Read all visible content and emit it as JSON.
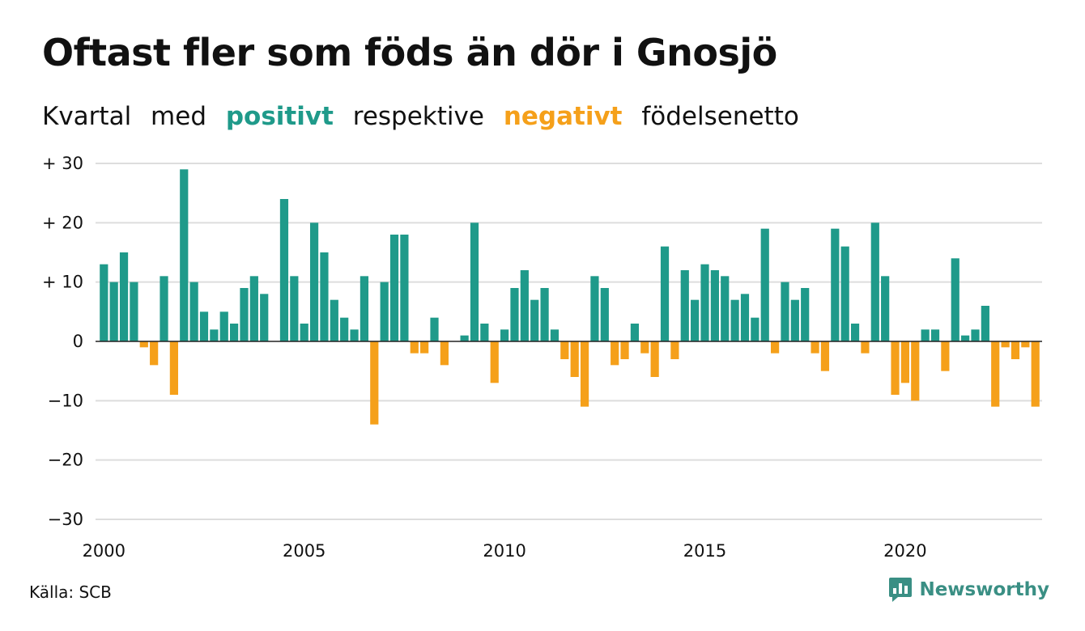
{
  "header": {
    "title": "Oftast fler som föds än dör i Gnosjö",
    "subtitle_parts": [
      "Kvartal",
      "med",
      "positivt",
      "respektive",
      "negativt",
      "födelsenetto"
    ]
  },
  "footer": {
    "source": "Källa: SCB",
    "brand": "Newsworthy",
    "brand_icon": "newsworthy-logo-icon"
  },
  "colors": {
    "positive": "#1f9a8a",
    "negative": "#f5a01a",
    "grid": "#dddddd",
    "axis": "#222222",
    "brand": "#3a8f84"
  },
  "chart_data": {
    "type": "bar",
    "title": "Oftast fler som föds än dör i Gnosjö",
    "subtitle": "Kvartal med positivt respektive negativt födelsenetto",
    "xlabel": "",
    "ylabel": "",
    "ylim": [
      -30,
      30
    ],
    "y_ticks": [
      30,
      20,
      10,
      0,
      -10,
      -20,
      -30
    ],
    "y_tick_labels": [
      "+ 30",
      "+ 20",
      "+ 10",
      "0",
      "−10",
      "−20",
      "−30"
    ],
    "x_tick_labels": [
      "2000",
      "2005",
      "2010",
      "2015",
      "2020"
    ],
    "start_year": 2000,
    "grid": true,
    "legend": "none",
    "values": [
      13,
      10,
      15,
      10,
      -1,
      -4,
      11,
      -9,
      29,
      10,
      5,
      2,
      5,
      3,
      9,
      11,
      8,
      0,
      24,
      11,
      3,
      20,
      15,
      7,
      4,
      2,
      11,
      -14,
      10,
      18,
      18,
      -2,
      -2,
      4,
      -4,
      0,
      1,
      20,
      3,
      -7,
      2,
      9,
      12,
      7,
      9,
      2,
      -3,
      -6,
      -11,
      11,
      9,
      -4,
      -3,
      3,
      -2,
      -6,
      16,
      -3,
      12,
      7,
      13,
      12,
      11,
      7,
      8,
      4,
      19,
      -2,
      10,
      7,
      9,
      -2,
      -5,
      19,
      16,
      3,
      -2,
      20,
      11,
      -9,
      -7,
      -10,
      2,
      2,
      -5,
      14,
      1,
      2,
      6,
      -11,
      -1,
      -3,
      -1,
      -11
    ]
  }
}
